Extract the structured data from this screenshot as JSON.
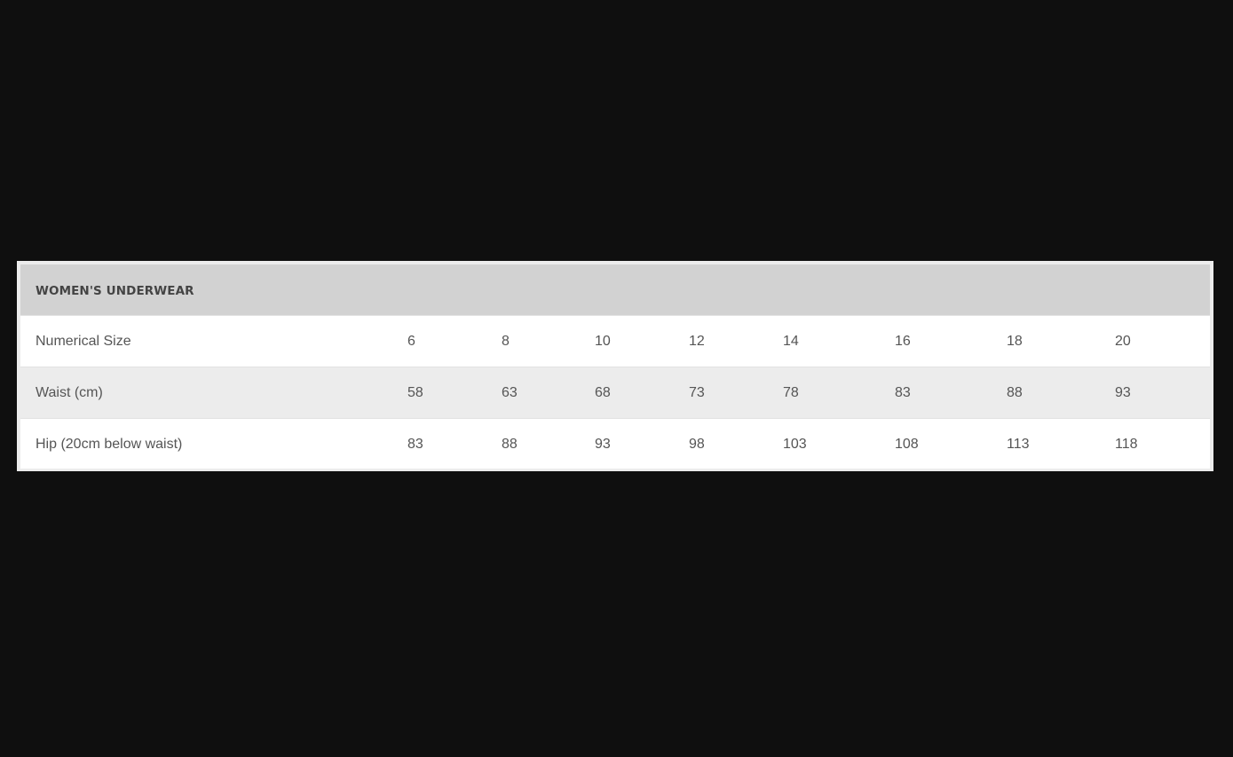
{
  "table": {
    "title": "WOMEN'S UNDERWEAR",
    "rows": [
      {
        "label": "Numerical Size",
        "values": [
          "6",
          "8",
          "10",
          "12",
          "14",
          "16",
          "18",
          "20"
        ]
      },
      {
        "label": "Waist (cm)",
        "values": [
          "58",
          "63",
          "68",
          "73",
          "78",
          "83",
          "88",
          "93"
        ]
      },
      {
        "label": "Hip (20cm below waist)",
        "values": [
          "83",
          "88",
          "93",
          "98",
          "103",
          "108",
          "113",
          "118"
        ]
      }
    ]
  }
}
